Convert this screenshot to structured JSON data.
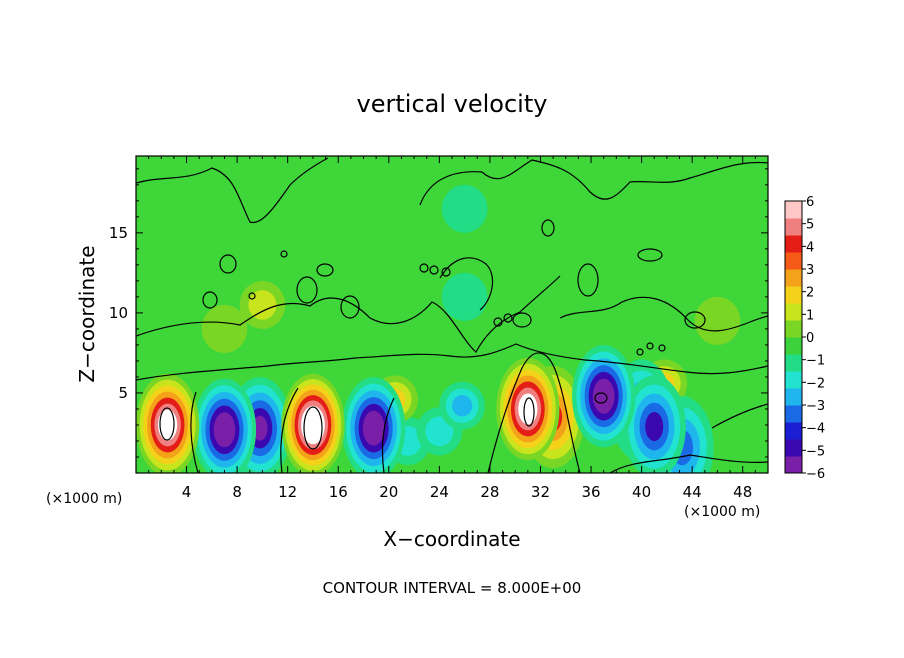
{
  "chart_data": {
    "type": "heatmap",
    "title": "vertical velocity",
    "xlabel": "X−coordinate",
    "ylabel": "Z−coordinate",
    "x_unit_left": "(×1000 m)",
    "x_unit_right": "(×1000 m)",
    "xlim": [
      0,
      50
    ],
    "ylim": [
      0,
      19.8
    ],
    "x_ticks": [
      4,
      8,
      12,
      16,
      20,
      24,
      28,
      32,
      36,
      40,
      44,
      48
    ],
    "y_ticks": [
      5,
      10,
      15
    ],
    "colorbar": {
      "ticks": [
        6,
        5,
        4,
        3,
        2,
        1,
        0,
        -1,
        -2,
        -3,
        -4,
        -5,
        -6
      ],
      "tick_labels": [
        "6",
        "5",
        "4",
        "3",
        "2",
        "1",
        "0",
        "−1",
        "−2",
        "−3",
        "−4",
        "−5",
        "−6"
      ],
      "range": [
        -6,
        6
      ],
      "colors": [
        "#7a1fa8",
        "#3b08b0",
        "#1a1fd4",
        "#1a6ae6",
        "#1fb6ee",
        "#22e2d0",
        "#22dc86",
        "#3bd23b",
        "#7ad624",
        "#c8e41c",
        "#f4d21a",
        "#f5a21b",
        "#f55a16",
        "#e41e16",
        "#f08080",
        "#ffc8c8",
        "#ffffff"
      ]
    },
    "features": [
      {
        "name": "updraft",
        "x": 2.5,
        "z": 3.0,
        "value": 8
      },
      {
        "name": "downdraft",
        "x": 7.0,
        "z": 2.7,
        "value": -7
      },
      {
        "name": "downdraft",
        "x": 9.8,
        "z": 2.8,
        "value": -6
      },
      {
        "name": "updraft",
        "x": 14.0,
        "z": 3.0,
        "value": 9
      },
      {
        "name": "downdraft",
        "x": 18.8,
        "z": 2.8,
        "value": -7
      },
      {
        "name": "updraft",
        "x": 20.5,
        "z": 4.6,
        "value": 3
      },
      {
        "name": "downdraft",
        "x": 21.5,
        "z": 2.0,
        "value": -2
      },
      {
        "name": "downdraft",
        "x": 25.8,
        "z": 4.2,
        "value": -3
      },
      {
        "name": "downdraft",
        "x": 24.0,
        "z": 2.6,
        "value": -2
      },
      {
        "name": "updraft",
        "x": 31.0,
        "z": 4.0,
        "value": 8
      },
      {
        "name": "updraft",
        "x": 33.0,
        "z": 3.5,
        "value": 5
      },
      {
        "name": "downdraft",
        "x": 37.0,
        "z": 4.8,
        "value": -7
      },
      {
        "name": "downdraft",
        "x": 40.0,
        "z": 3.9,
        "value": -4
      },
      {
        "name": "downdraft",
        "x": 41.0,
        "z": 2.9,
        "value": -5
      },
      {
        "name": "downdraft",
        "x": 43.2,
        "z": 1.6,
        "value": -4
      },
      {
        "name": "updraft",
        "x": 41.8,
        "z": 5.6,
        "value": 3
      },
      {
        "name": "updraft",
        "x": 10.0,
        "z": 10.5,
        "value": 2
      },
      {
        "name": "updraft",
        "x": 7.0,
        "z": 9.0,
        "value": 1
      },
      {
        "name": "updraft",
        "x": 46.0,
        "z": 9.5,
        "value": 1
      },
      {
        "name": "downdraft",
        "x": 26.0,
        "z": 11.0,
        "value": -0.8
      },
      {
        "name": "downdraft",
        "x": 26.0,
        "z": 16.5,
        "value": -0.5
      }
    ]
  },
  "contour_label": "CONTOUR INTERVAL = 8.000E+00"
}
